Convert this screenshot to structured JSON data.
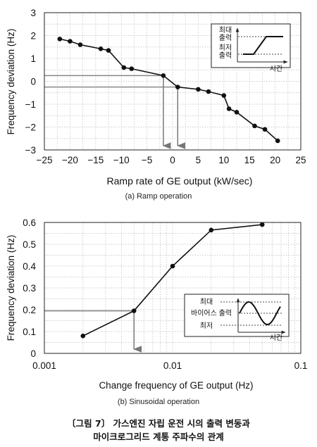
{
  "chart_data": [
    {
      "type": "line",
      "panel_label": "(a) Ramp operation",
      "xlabel": "Ramp rate of GE output (kW/sec)",
      "ylabel": "Frequency deviation (Hz)",
      "xlim": [
        -25,
        25
      ],
      "ylim": [
        -3,
        3
      ],
      "xticks": [
        -25,
        -20,
        -15,
        -10,
        -5,
        0,
        5,
        10,
        15,
        20,
        25
      ],
      "yticks": [
        -3,
        -2,
        -1,
        0,
        1,
        2,
        3
      ],
      "grid": true,
      "series": [
        {
          "x": [
            -22,
            -20,
            -18,
            -14,
            -12.5,
            -9.5,
            -8,
            -1.8,
            1,
            5,
            7,
            10,
            11,
            12.5,
            16,
            18,
            20.5
          ],
          "y": [
            1.85,
            1.75,
            1.6,
            1.42,
            1.35,
            0.6,
            0.55,
            0.25,
            -0.25,
            -0.35,
            -0.45,
            -0.62,
            -1.2,
            -1.35,
            -1.95,
            -2.1,
            -2.6
          ]
        }
      ],
      "guide_lines": [
        {
          "y": 0.25,
          "x_end": -1.8
        },
        {
          "y": -0.25,
          "x_end": 1
        }
      ],
      "arrows": [
        {
          "x": -1.8,
          "from_y": 0.25
        },
        {
          "x": 1,
          "from_y": -0.25
        }
      ],
      "inset": {
        "type": "ramp",
        "labels": {
          "max_line1": "최대",
          "max_line2": "출력",
          "min_line1": "최저",
          "min_line2": "출력",
          "time": "시간"
        },
        "placement": "top-right"
      }
    },
    {
      "type": "line",
      "panel_label": "(b) Sinusoidal operation",
      "xlabel": "Change frequency of GE output (Hz)",
      "ylabel": "Frequency deviation (Hz)",
      "xscale": "log",
      "xlim": [
        0.001,
        0.1
      ],
      "ylim": [
        0,
        0.6
      ],
      "xticks": [
        0.001,
        0.01,
        0.1
      ],
      "xtick_labels": [
        "0.001",
        "0.01",
        "0.1"
      ],
      "yticks": [
        0,
        0.1,
        0.2,
        0.3,
        0.4,
        0.5,
        0.6
      ],
      "ytick_labels": [
        "0",
        "0.1",
        "0.2",
        "0.3",
        "0.4",
        "0.5",
        "0.6"
      ],
      "grid": true,
      "series": [
        {
          "x": [
            0.002,
            0.005,
            0.01,
            0.02,
            0.05
          ],
          "y": [
            0.08,
            0.195,
            0.4,
            0.565,
            0.59
          ]
        }
      ],
      "guide_lines": [
        {
          "y": 0.195,
          "x_end": 0.005
        }
      ],
      "arrows": [
        {
          "x": 0.005,
          "from_y": 0.195
        }
      ],
      "inset": {
        "type": "sine",
        "labels": {
          "max": "최대",
          "bias": "바이어스 출력",
          "min": "최저",
          "time": "시간"
        },
        "placement": "middle-right"
      }
    }
  ],
  "figure_caption": {
    "line1": "〔그림 7〕 가스엔진 자립 운전 시의 출력 변동과",
    "line2": "마이크로그리드 계통 주파수의 관계"
  }
}
